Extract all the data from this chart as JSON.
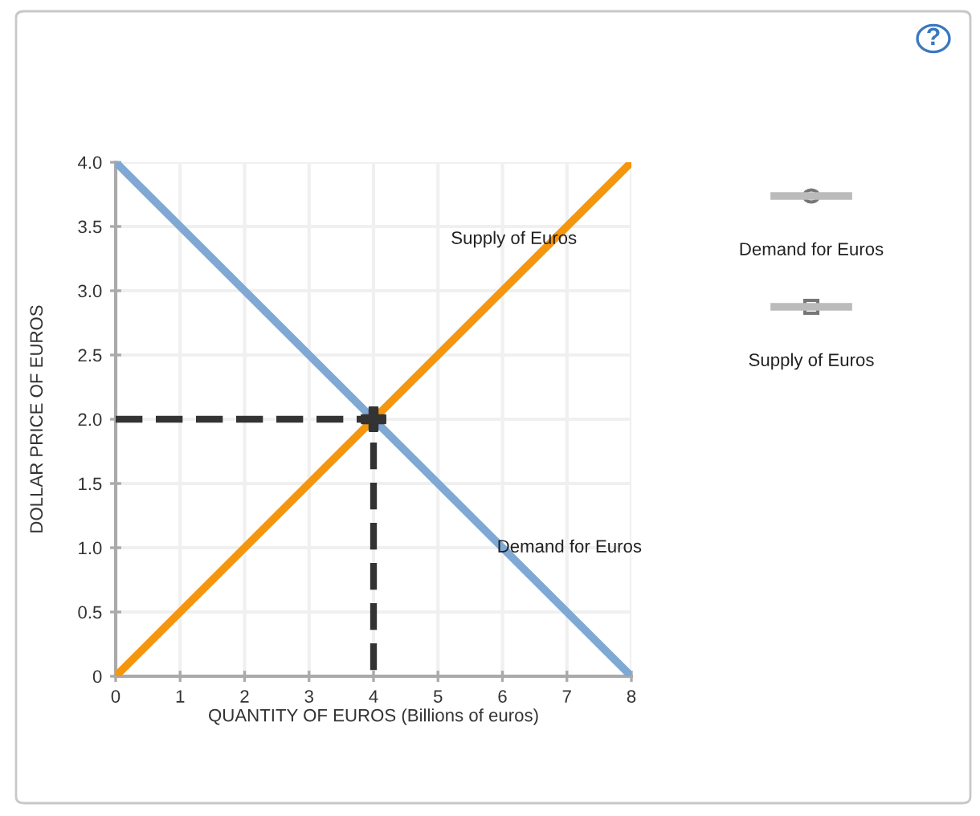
{
  "chart_data": {
    "type": "line",
    "xlabel": "QUANTITY OF EUROS (Billions of euros)",
    "ylabel": "DOLLAR PRICE OF EUROS",
    "xlim": [
      0,
      8
    ],
    "xticks": [
      0,
      1,
      2,
      3,
      4,
      5,
      6,
      7,
      8
    ],
    "ylim": [
      0,
      4.0
    ],
    "yticks": [
      {
        "value": 0,
        "label": "0"
      },
      {
        "value": 0.5,
        "label": "0.5"
      },
      {
        "value": 1.0,
        "label": "1.0"
      },
      {
        "value": 1.5,
        "label": "1.5"
      },
      {
        "value": 2.0,
        "label": "2.0"
      },
      {
        "value": 2.5,
        "label": "2.5"
      },
      {
        "value": 3.0,
        "label": "3.0"
      },
      {
        "value": 3.5,
        "label": "3.5"
      },
      {
        "value": 4.0,
        "label": "4.0"
      }
    ],
    "grid": true,
    "series": [
      {
        "name": "Demand for Euros",
        "color": "#7fa8d4",
        "x": [
          0,
          8
        ],
        "values": [
          4.0,
          0
        ]
      },
      {
        "name": "Supply of Euros",
        "color": "#f5960f",
        "x": [
          0,
          8
        ],
        "values": [
          0,
          4.0
        ]
      },
      {
        "color": "#333333",
        "line_style": "dashed",
        "x": [
          0,
          4,
          4
        ],
        "values": [
          2.0,
          2.0,
          0
        ]
      },
      {
        "type": "scatter",
        "color": "#333333",
        "marker": "cross",
        "x": [
          4
        ],
        "values": [
          2.0
        ]
      }
    ],
    "annotations": [
      "Demand for Euros",
      "Supply of Euros",
      "?"
    ]
  }
}
